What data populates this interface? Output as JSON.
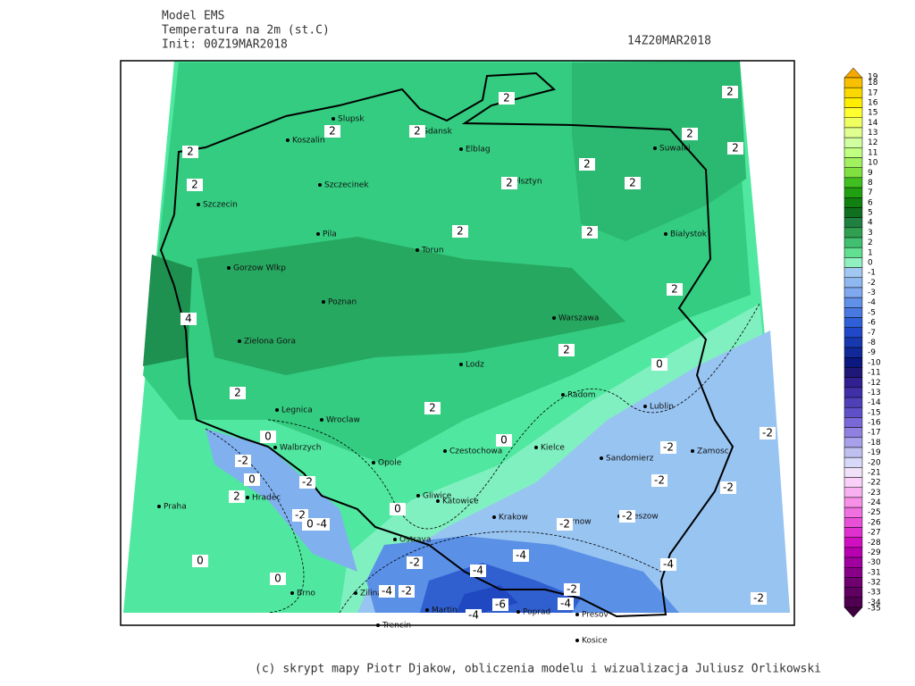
{
  "header": {
    "model": "Model EMS",
    "variable": "Temperatura na 2m (st.C)",
    "init": "Init: 00Z19MAR2018",
    "valid": "14Z20MAR2018"
  },
  "colorbar": {
    "levels": [
      19,
      18,
      17,
      16,
      15,
      14,
      13,
      12,
      11,
      10,
      9,
      8,
      7,
      6,
      5,
      4,
      3,
      2,
      1,
      0,
      -1,
      -2,
      -3,
      -4,
      -5,
      -6,
      -7,
      -8,
      -9,
      -10,
      -11,
      -12,
      -13,
      -14,
      -15,
      -16,
      -17,
      -18,
      -19,
      -20,
      -21,
      -22,
      -23,
      -24,
      -25,
      -26,
      -27,
      -28,
      -29,
      -30,
      -31,
      -32,
      -33,
      -34,
      -35
    ],
    "colors": [
      "#f5a800",
      "#f8c000",
      "#fbd800",
      "#ffee00",
      "#ffff30",
      "#f0ff60",
      "#e0ff90",
      "#d0ffa0",
      "#c0ff80",
      "#a0f060",
      "#80e040",
      "#40c020",
      "#20a010",
      "#108010",
      "#107020",
      "#208040",
      "#30a050",
      "#40c070",
      "#60e090",
      "#90f0c0",
      "#a0c8f0",
      "#90b8f0",
      "#80a8ee",
      "#6090e8",
      "#4878e0",
      "#3060d8",
      "#2048c8",
      "#1838b0",
      "#102898",
      "#0a1880",
      "#201878",
      "#302090",
      "#4030a8",
      "#5040b8",
      "#6050c8",
      "#7868d8",
      "#9080e0",
      "#a8a0e8",
      "#c0c0f0",
      "#d8d8f8",
      "#f0e0f8",
      "#f8d0f8",
      "#f8b0f0",
      "#f890e8",
      "#f070e0",
      "#e850d8",
      "#e030d0",
      "#d010c0",
      "#b800b0",
      "#a000a0",
      "#880088",
      "#700070",
      "#600060",
      "#500050",
      "#400040"
    ]
  },
  "cities": [
    "Slupsk",
    "Koszalin",
    "Gdansk",
    "Elblag",
    "Olsztyn",
    "Suwalki",
    "Szczecinek",
    "Szczecin",
    "Pila",
    "Torun",
    "Bialystok",
    "Gorzow Wlkp",
    "Poznan",
    "Warszawa",
    "Zielona Gora",
    "Lodz",
    "Radom",
    "Lublin",
    "Legnica",
    "Wroclaw",
    "Walbrzych",
    "Kielce",
    "Opole",
    "Czestochowa",
    "Sandomierz",
    "Zamosc",
    "Hradec",
    "Praha",
    "Gliwice",
    "Katowice",
    "Krakow",
    "Tarnow",
    "Rzeszow",
    "Ostrava",
    "Brno",
    "Zilina",
    "Martin",
    "Poprad",
    "Presov",
    "Trencin",
    "Kosice"
  ],
  "contour_labels": [
    2,
    2,
    2,
    2,
    2,
    2,
    2,
    2,
    2,
    2,
    2,
    2,
    2,
    2,
    4,
    2,
    0,
    2,
    2,
    0,
    -2,
    0,
    -2,
    2,
    -2,
    0,
    -4,
    0,
    0,
    -2,
    -2,
    -2,
    -2,
    -2,
    -2,
    0,
    0,
    -2,
    -4,
    -4,
    -4,
    -4,
    -2,
    -6,
    -4,
    -4,
    -2,
    -2
  ],
  "footer": "(c) skrypt mapy Piotr Djakow, obliczenia modelu i wizualizacja Juliusz Orlikowski"
}
